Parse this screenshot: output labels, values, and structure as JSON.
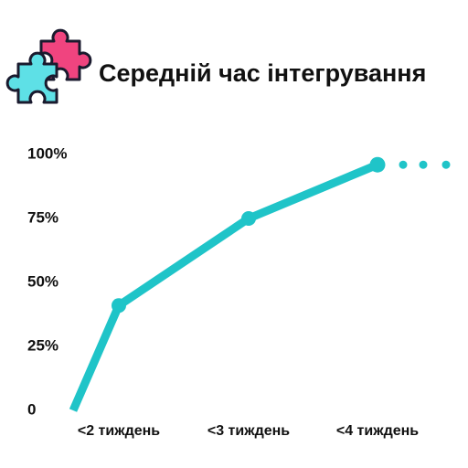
{
  "chart_data": {
    "type": "line",
    "title": "Середній час інтегрування",
    "categories": [
      null,
      "<2 тиждень",
      "<3 тиждень",
      "<4 тиждень"
    ],
    "values": [
      0,
      41,
      75,
      96
    ],
    "color": "#1fc4c8",
    "ylim": [
      0,
      100
    ],
    "yticks": [
      0,
      {
        "value": 25,
        "label": "25%"
      },
      {
        "value": 50,
        "label": "50%"
      },
      {
        "value": 75,
        "label": "75%"
      },
      {
        "value": 100,
        "label": "100%"
      }
    ]
  }
}
